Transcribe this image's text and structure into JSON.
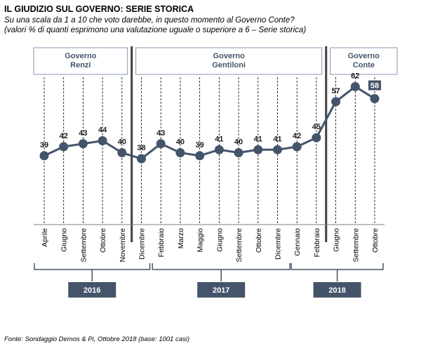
{
  "chart_data": {
    "type": "line",
    "title": "IL GIUDIZIO SUL GOVERNO: SERIE STORICA",
    "subtitle_lines": [
      "Su una scala da 1 a 10 che voto darebbe,  in questo momento al Governo Conte?",
      "(valori % di quanti esprimono una valutazione uguale  o superiore a 6 – Serie storica)"
    ],
    "categories": [
      "Aprile",
      "Giugno",
      "Settembre",
      "Ottobre",
      "Novembre",
      "Dicembre",
      "Febbraio",
      "Marzo",
      "Maggio",
      "Giugno",
      "Settembre",
      "Ottobre",
      "Dicembre",
      "Gennaio",
      "Febbraio",
      "Giugno",
      "Settembre",
      "Ottobre"
    ],
    "values": [
      39,
      42,
      43,
      44,
      40,
      38,
      43,
      40,
      39,
      41,
      40,
      41,
      41,
      42,
      45,
      57,
      62,
      58
    ],
    "value_labels": [
      "39",
      "42",
      "43",
      "44",
      "40",
      "38",
      "43",
      "40",
      "39",
      "41",
      "40",
      "41",
      "41",
      "42",
      "45",
      "57",
      "62",
      "58"
    ],
    "highlighted_last_label": "58",
    "governments": [
      {
        "name_lines": [
          "Governo",
          "Renzi"
        ]
      },
      {
        "name_lines": [
          "Governo",
          "Gentiloni"
        ]
      },
      {
        "name_lines": [
          "Governo",
          "Conte"
        ]
      }
    ],
    "years": [
      "2016",
      "2017",
      "2018"
    ],
    "source": "Fonte: Sondaggio Demos & Pi, Ottobre 2018 (base: 1001 casi)",
    "ylim": [
      0,
      100
    ],
    "grid": "vertical dashed",
    "colors": {
      "line": "#44546a",
      "marker": "#44546a",
      "box_border": "#8497b0",
      "year_box": "#44546a",
      "divider": "#404040"
    }
  }
}
